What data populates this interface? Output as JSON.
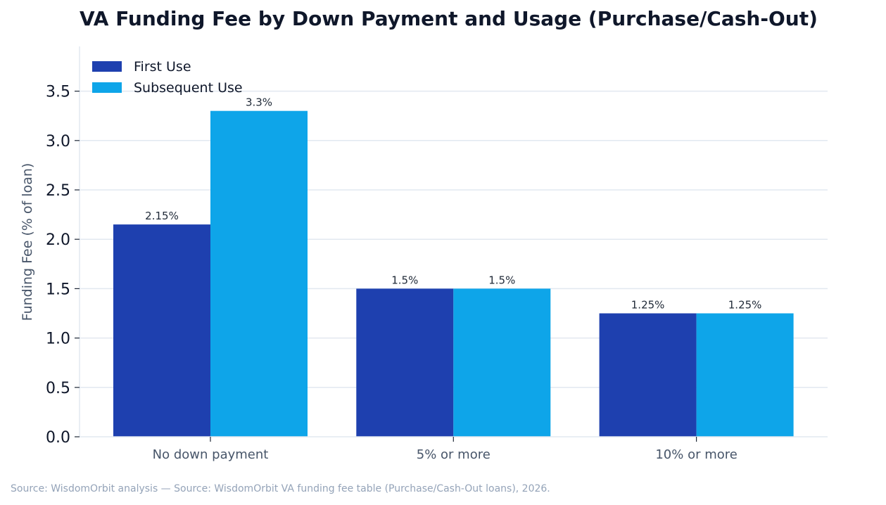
{
  "chart_data": {
    "type": "bar",
    "title": "VA Funding Fee by Down Payment and Usage (Purchase/Cash-Out)",
    "xlabel": "",
    "ylabel": "Funding Fee (% of loan)",
    "categories": [
      "No down payment",
      "5% or more",
      "10% or more"
    ],
    "series": [
      {
        "name": "First Use",
        "color": "#1e40af",
        "values": [
          2.15,
          1.5,
          1.25
        ],
        "labels": [
          "2.15%",
          "1.5%",
          "1.25%"
        ]
      },
      {
        "name": "Subsequent Use",
        "color": "#0ea5e9",
        "values": [
          3.3,
          1.5,
          1.25
        ],
        "labels": [
          "3.3%",
          "1.5%",
          "1.25%"
        ]
      }
    ],
    "ylim": [
      0,
      3.96
    ],
    "yticks": [
      0.0,
      0.5,
      1.0,
      1.5,
      2.0,
      2.5,
      3.0,
      3.5
    ],
    "ytick_labels": [
      "0.0",
      "0.5",
      "1.0",
      "1.5",
      "2.0",
      "2.5",
      "3.0",
      "3.5"
    ],
    "grid": "horizontal",
    "legend_position": "top-left",
    "source": "Source: WisdomOrbit analysis — Source: WisdomOrbit VA funding fee table (Purchase/Cash-Out loans), 2026."
  }
}
